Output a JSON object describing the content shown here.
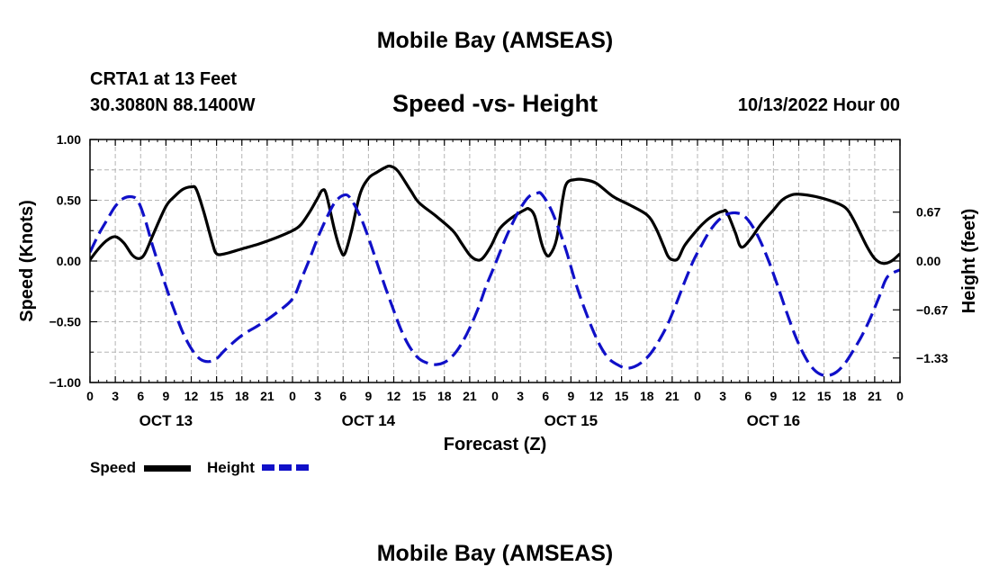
{
  "header": {
    "title": "Mobile Bay (AMSEAS)",
    "station": "CRTA1 at 13 Feet",
    "coords": "30.3080N  88.1400W",
    "chart_title": "Speed -vs- Height",
    "datetime": "10/13/2022 Hour 00"
  },
  "footer": {
    "title": "Mobile Bay (AMSEAS)"
  },
  "legend": {
    "speed_label": "Speed",
    "height_label": "Height"
  },
  "colors": {
    "speed": "#000000",
    "height": "#1010c8",
    "grid": "#b4b4b4"
  },
  "chart_data": {
    "type": "line",
    "title": "Speed -vs- Height",
    "xlabel": "Forecast (Z)",
    "ylabel": "Speed (Knots)",
    "y2label": "Height (feet)",
    "xlim": [
      0,
      96
    ],
    "ylim": [
      -1.0,
      1.0
    ],
    "y2lim": [
      -1.666,
      1.666
    ],
    "x_tick_labels": [
      "0",
      "3",
      "6",
      "9",
      "12",
      "15",
      "18",
      "21",
      "0",
      "3",
      "6",
      "9",
      "12",
      "15",
      "18",
      "21",
      "0",
      "3",
      "6",
      "9",
      "12",
      "15",
      "18",
      "21",
      "0",
      "3",
      "6",
      "9",
      "12",
      "15",
      "18",
      "21",
      "0"
    ],
    "day_labels": [
      {
        "label": "OCT 13",
        "hour": 9
      },
      {
        "label": "OCT 14",
        "hour": 33
      },
      {
        "label": "OCT 15",
        "hour": 57
      },
      {
        "label": "OCT 16",
        "hour": 81
      }
    ],
    "y_tick_labels": [
      {
        "value": 1.0,
        "label": "1.00"
      },
      {
        "value": 0.5,
        "label": "0.50"
      },
      {
        "value": 0.0,
        "label": "0.00"
      },
      {
        "value": -0.5,
        "label": "−0.50"
      },
      {
        "value": -1.0,
        "label": "−1.00"
      }
    ],
    "y2_tick_labels": [
      {
        "value": 0.67,
        "label": "0.67"
      },
      {
        "value": 0.0,
        "label": "0.00"
      },
      {
        "value": -0.67,
        "label": "−0.67"
      },
      {
        "value": -1.33,
        "label": "−1.33"
      }
    ],
    "series": [
      {
        "name": "Speed",
        "axis": "left",
        "style": "solid",
        "points": [
          [
            0,
            0.01
          ],
          [
            1,
            0.1
          ],
          [
            2,
            0.17
          ],
          [
            3,
            0.2
          ],
          [
            4,
            0.15
          ],
          [
            5,
            0.05
          ],
          [
            5.8,
            0.02
          ],
          [
            6.5,
            0.06
          ],
          [
            7.5,
            0.22
          ],
          [
            9,
            0.45
          ],
          [
            10,
            0.53
          ],
          [
            11,
            0.59
          ],
          [
            12,
            0.61
          ],
          [
            12.6,
            0.59
          ],
          [
            13.5,
            0.4
          ],
          [
            14.5,
            0.15
          ],
          [
            15,
            0.06
          ],
          [
            16,
            0.06
          ],
          [
            18,
            0.1
          ],
          [
            20,
            0.14
          ],
          [
            22,
            0.19
          ],
          [
            24,
            0.25
          ],
          [
            25,
            0.3
          ],
          [
            26,
            0.4
          ],
          [
            27,
            0.52
          ],
          [
            27.5,
            0.58
          ],
          [
            28,
            0.55
          ],
          [
            29,
            0.25
          ],
          [
            29.7,
            0.09
          ],
          [
            30.2,
            0.06
          ],
          [
            31,
            0.25
          ],
          [
            32,
            0.55
          ],
          [
            33,
            0.68
          ],
          [
            34,
            0.73
          ],
          [
            35,
            0.77
          ],
          [
            35.6,
            0.78
          ],
          [
            36.5,
            0.74
          ],
          [
            38,
            0.58
          ],
          [
            39,
            0.48
          ],
          [
            41,
            0.37
          ],
          [
            43,
            0.25
          ],
          [
            44,
            0.15
          ],
          [
            45,
            0.05
          ],
          [
            45.8,
            0.01
          ],
          [
            46.5,
            0.02
          ],
          [
            47.5,
            0.12
          ],
          [
            48.5,
            0.26
          ],
          [
            49.5,
            0.33
          ],
          [
            50.5,
            0.38
          ],
          [
            51.5,
            0.42
          ],
          [
            52,
            0.43
          ],
          [
            52.7,
            0.37
          ],
          [
            53.5,
            0.15
          ],
          [
            54,
            0.06
          ],
          [
            54.5,
            0.05
          ],
          [
            55.3,
            0.18
          ],
          [
            56,
            0.5
          ],
          [
            56.5,
            0.64
          ],
          [
            57.5,
            0.67
          ],
          [
            58.5,
            0.67
          ],
          [
            60,
            0.64
          ],
          [
            62,
            0.53
          ],
          [
            64,
            0.46
          ],
          [
            66,
            0.38
          ],
          [
            67,
            0.28
          ],
          [
            68,
            0.12
          ],
          [
            68.5,
            0.04
          ],
          [
            69,
            0.01
          ],
          [
            69.7,
            0.02
          ],
          [
            70.5,
            0.13
          ],
          [
            72,
            0.26
          ],
          [
            73,
            0.33
          ],
          [
            74,
            0.38
          ],
          [
            75,
            0.41
          ],
          [
            75.5,
            0.4
          ],
          [
            76.5,
            0.23
          ],
          [
            77,
            0.13
          ],
          [
            77.5,
            0.12
          ],
          [
            78.5,
            0.2
          ],
          [
            79.5,
            0.3
          ],
          [
            81,
            0.42
          ],
          [
            82,
            0.5
          ],
          [
            83,
            0.54
          ],
          [
            84,
            0.55
          ],
          [
            86,
            0.53
          ],
          [
            88,
            0.49
          ],
          [
            89.5,
            0.44
          ],
          [
            90.5,
            0.34
          ],
          [
            92,
            0.13
          ],
          [
            93,
            0.02
          ],
          [
            94,
            -0.02
          ],
          [
            95,
            0.0
          ],
          [
            96,
            0.06
          ]
        ]
      },
      {
        "name": "Height",
        "axis": "right",
        "style": "dashed",
        "points": [
          [
            0,
            0.12
          ],
          [
            1,
            0.36
          ],
          [
            2,
            0.56
          ],
          [
            3,
            0.75
          ],
          [
            4,
            0.86
          ],
          [
            5,
            0.88
          ],
          [
            5.7,
            0.82
          ],
          [
            6.5,
            0.58
          ],
          [
            7.5,
            0.18
          ],
          [
            9,
            -0.35
          ],
          [
            10,
            -0.68
          ],
          [
            11,
            -0.98
          ],
          [
            12,
            -1.2
          ],
          [
            13,
            -1.34
          ],
          [
            14,
            -1.38
          ],
          [
            15,
            -1.34
          ],
          [
            16,
            -1.22
          ],
          [
            18,
            -1.02
          ],
          [
            20,
            -0.88
          ],
          [
            22,
            -0.72
          ],
          [
            24,
            -0.52
          ],
          [
            25,
            -0.26
          ],
          [
            26,
            0.02
          ],
          [
            27,
            0.32
          ],
          [
            28,
            0.58
          ],
          [
            29,
            0.8
          ],
          [
            30,
            0.9
          ],
          [
            30.8,
            0.87
          ],
          [
            32,
            0.62
          ],
          [
            33,
            0.32
          ],
          [
            34,
            -0.02
          ],
          [
            35,
            -0.36
          ],
          [
            36,
            -0.68
          ],
          [
            37,
            -0.98
          ],
          [
            38,
            -1.2
          ],
          [
            39,
            -1.34
          ],
          [
            40,
            -1.4
          ],
          [
            41,
            -1.42
          ],
          [
            42,
            -1.39
          ],
          [
            43,
            -1.3
          ],
          [
            44,
            -1.14
          ],
          [
            45,
            -0.92
          ],
          [
            46,
            -0.65
          ],
          [
            47,
            -0.33
          ],
          [
            48,
            -0.05
          ],
          [
            49,
            0.24
          ],
          [
            50,
            0.5
          ],
          [
            51,
            0.72
          ],
          [
            52,
            0.88
          ],
          [
            53,
            0.93
          ],
          [
            53.5,
            0.92
          ],
          [
            54.5,
            0.74
          ],
          [
            55.5,
            0.46
          ],
          [
            56.5,
            0.12
          ],
          [
            57.5,
            -0.28
          ],
          [
            58.5,
            -0.62
          ],
          [
            59.5,
            -0.92
          ],
          [
            60.5,
            -1.17
          ],
          [
            61.5,
            -1.34
          ],
          [
            62.5,
            -1.42
          ],
          [
            63.5,
            -1.47
          ],
          [
            64.5,
            -1.45
          ],
          [
            65.5,
            -1.38
          ],
          [
            66.5,
            -1.26
          ],
          [
            67.5,
            -1.08
          ],
          [
            68.5,
            -0.86
          ],
          [
            69.5,
            -0.58
          ],
          [
            70.5,
            -0.28
          ],
          [
            71.5,
            0.0
          ],
          [
            72.5,
            0.22
          ],
          [
            73.5,
            0.42
          ],
          [
            74.5,
            0.56
          ],
          [
            75.5,
            0.64
          ],
          [
            76.5,
            0.66
          ],
          [
            77.5,
            0.62
          ],
          [
            78.5,
            0.48
          ],
          [
            79.5,
            0.26
          ],
          [
            80.5,
            -0.02
          ],
          [
            81.5,
            -0.34
          ],
          [
            82.5,
            -0.68
          ],
          [
            83.5,
            -1.0
          ],
          [
            84.5,
            -1.26
          ],
          [
            85.5,
            -1.45
          ],
          [
            86.5,
            -1.55
          ],
          [
            87.5,
            -1.57
          ],
          [
            88.5,
            -1.52
          ],
          [
            89.5,
            -1.4
          ],
          [
            90.5,
            -1.22
          ],
          [
            91.5,
            -1.02
          ],
          [
            92.5,
            -0.78
          ],
          [
            93.5,
            -0.5
          ],
          [
            94.5,
            -0.22
          ],
          [
            96,
            -0.12
          ]
        ]
      }
    ]
  }
}
